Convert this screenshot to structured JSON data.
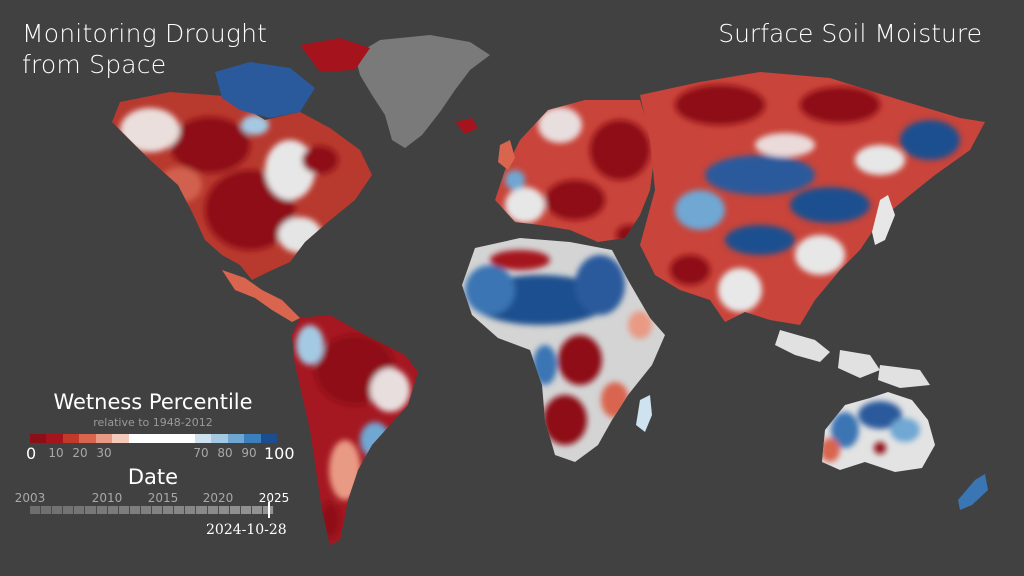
{
  "header": {
    "title_line1": "Monitoring Drought",
    "title_line2": "from Space",
    "subject": "Surface Soil Moisture"
  },
  "legend": {
    "title": "Wetness Percentile",
    "subtitle": "relative to 1948-2012",
    "min_label": "0",
    "max_label": "100",
    "tick_labels": [
      "10",
      "20",
      "30",
      "70",
      "80",
      "90"
    ],
    "colors": [
      "#8b0f16",
      "#a5141d",
      "#c0392b",
      "#d9654f",
      "#e99a84",
      "#f4cbbd",
      "#ffffff",
      "#ffffff",
      "#ffffff",
      "#ffffff",
      "#cfe2ef",
      "#a4c9e3",
      "#6fa7d3",
      "#3b7fbd",
      "#1b4d8f"
    ]
  },
  "timeline": {
    "title": "Date",
    "start_label": "2003",
    "tick_labels": [
      "2010",
      "2015",
      "2020"
    ],
    "end_label": "2025",
    "current_date": "2024-10-28",
    "progress": 0.98
  },
  "map": {
    "dry_color": "#8e1119",
    "mid_dry_color": "#d2614f",
    "neutral_color": "#e8e8e8",
    "wet_color": "#3a75b4",
    "very_wet_color": "#173f7a",
    "ice_color": "#7a7a7a"
  }
}
